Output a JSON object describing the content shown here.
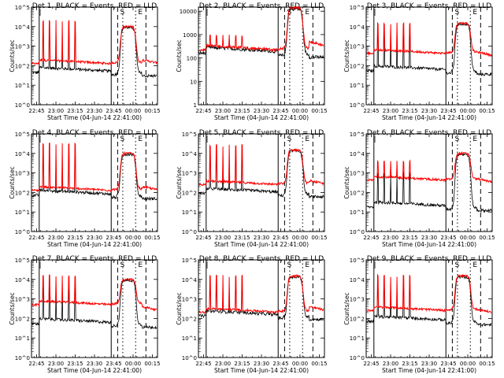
{
  "chart_data": {
    "type": "line",
    "layout": "3x3 grid of detector panels",
    "x_tick_labels": [
      "22:45",
      "23:00",
      "23:15",
      "23:30",
      "23:45",
      "00:00",
      "00:15"
    ],
    "xlabel": "Start Time (04-Jun-14 22:41:00)",
    "ylabel": "Counts/sec",
    "y_scale": "log",
    "grid": false,
    "colors": {
      "events": "#000000",
      "lld": "#ff0000"
    },
    "markers": [
      "S",
      "E"
    ],
    "panels": [
      {
        "title": "Det 1, BLACK = Events, RED = LLD",
        "ylim": [
          1,
          100000
        ],
        "y_tick_labels": [
          "10^0",
          "10^1",
          "10^2",
          "10^3",
          "10^4",
          "10^5"
        ],
        "events_level": 50,
        "lld_level": 150,
        "spike_peak": 20000,
        "lld_peak": 10000,
        "after": 200,
        "series": [
          {
            "name": "BLACK = Events"
          },
          {
            "name": "RED = LLD"
          }
        ]
      },
      {
        "title": "Det 2, BLACK = Events, RED = LLD",
        "ylim": [
          1,
          15000
        ],
        "y_tick_labels": [
          "1",
          "10",
          "100",
          "1000",
          "10000"
        ],
        "events_level": 180,
        "lld_level": 260,
        "spike_peak": 900,
        "lld_peak": 14000,
        "after": 500,
        "series": [
          {
            "name": "BLACK = Events"
          },
          {
            "name": "RED = LLD"
          }
        ]
      },
      {
        "title": "Det 3, BLACK = Events, RED = LLD",
        "ylim": [
          1,
          100000
        ],
        "y_tick_labels": [
          "10^0",
          "10^1",
          "10^2",
          "10^3",
          "10^4",
          "10^5"
        ],
        "events_level": 60,
        "lld_level": 500,
        "spike_peak": 15000,
        "lld_peak": 15000,
        "after": 500,
        "series": [
          {
            "name": "BLACK = Events"
          },
          {
            "name": "RED = LLD"
          }
        ]
      },
      {
        "title": "Det 4, BLACK = Events, RED = LLD",
        "ylim": [
          1,
          100000
        ],
        "y_tick_labels": [
          "10^0",
          "10^1",
          "10^2",
          "10^3",
          "10^4",
          "10^5"
        ],
        "events_level": 80,
        "lld_level": 150,
        "spike_peak": 30000,
        "lld_peak": 10000,
        "after": 200,
        "series": [
          {
            "name": "BLACK = Events"
          },
          {
            "name": "RED = LLD"
          }
        ]
      },
      {
        "title": "Det 5, BLACK = Events, RED = LLD",
        "ylim": [
          1,
          100000
        ],
        "y_tick_labels": [
          "10^0",
          "10^1",
          "10^2",
          "10^3",
          "10^4",
          "10^5"
        ],
        "events_level": 100,
        "lld_level": 300,
        "spike_peak": 25000,
        "lld_peak": 15000,
        "after": 400,
        "series": [
          {
            "name": "BLACK = Events"
          },
          {
            "name": "RED = LLD"
          }
        ]
      },
      {
        "title": "Det 6, BLACK = Events, RED = LLD",
        "ylim": [
          1,
          100000
        ],
        "y_tick_labels": [
          "10^0",
          "10^1",
          "10^2",
          "10^3",
          "10^4",
          "10^5"
        ],
        "events_level": 20,
        "lld_level": 500,
        "spike_peak": 4000,
        "lld_peak": 10000,
        "after": 500,
        "series": [
          {
            "name": "BLACK = Events"
          },
          {
            "name": "RED = LLD"
          }
        ]
      },
      {
        "title": "Det 7, BLACK = Events, RED = LLD",
        "ylim": [
          1,
          100000
        ],
        "y_tick_labels": [
          "10^0",
          "10^1",
          "10^2",
          "10^3",
          "10^4",
          "10^5"
        ],
        "events_level": 60,
        "lld_level": 600,
        "spike_peak": 15000,
        "lld_peak": 10000,
        "after": 400,
        "series": [
          {
            "name": "BLACK = Events"
          },
          {
            "name": "RED = LLD"
          }
        ]
      },
      {
        "title": "Det 8, BLACK = Events, RED = LLD",
        "ylim": [
          1,
          100000
        ],
        "y_tick_labels": [
          "10^0",
          "10^1",
          "10^2",
          "10^3",
          "10^4",
          "10^5"
        ],
        "events_level": 150,
        "lld_level": 250,
        "spike_peak": 15000,
        "lld_peak": 15000,
        "after": 400,
        "series": [
          {
            "name": "BLACK = Events"
          },
          {
            "name": "RED = LLD"
          }
        ]
      },
      {
        "title": "Det 9, BLACK = Events, RED = LLD",
        "ylim": [
          1,
          100000
        ],
        "y_tick_labels": [
          "10^0",
          "10^1",
          "10^2",
          "10^3",
          "10^4",
          "10^5"
        ],
        "events_level": 80,
        "lld_level": 300,
        "spike_peak": 15000,
        "lld_peak": 15000,
        "after": 300,
        "series": [
          {
            "name": "BLACK = Events"
          },
          {
            "name": "RED = LLD"
          }
        ]
      }
    ]
  }
}
